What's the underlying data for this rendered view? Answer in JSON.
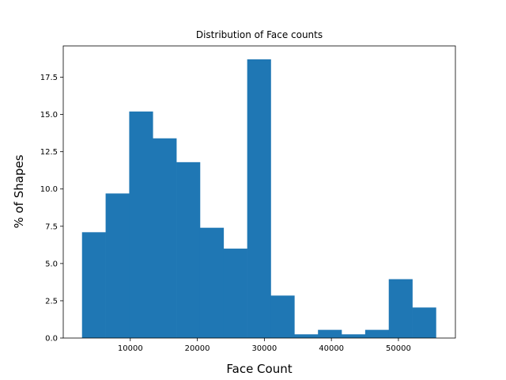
{
  "chart_data": {
    "type": "bar",
    "title": "Distribution of Face counts",
    "xlabel": "Face Count",
    "ylabel": "% of Shapes",
    "bin_edges": [
      2800,
      6320,
      9840,
      13360,
      16880,
      20400,
      23920,
      27440,
      30960,
      34480,
      38000,
      41520,
      45040,
      48560,
      52080,
      55600
    ],
    "values": [
      7.1,
      9.7,
      15.2,
      13.4,
      11.8,
      7.4,
      6.0,
      18.7,
      2.85,
      0.25,
      0.55,
      0.25,
      0.55,
      3.95,
      2.05
    ],
    "xlim": [
      0,
      58500
    ],
    "ylim": [
      0,
      19.6
    ],
    "xticks": [
      10000,
      20000,
      30000,
      40000,
      50000
    ],
    "xtick_labels": [
      "10000",
      "20000",
      "30000",
      "40000",
      "50000"
    ],
    "yticks": [
      0,
      2.5,
      5,
      7.5,
      10,
      12.5,
      15,
      17.5
    ],
    "ytick_labels": [
      "0.0",
      "2.5",
      "5.0",
      "7.5",
      "10.0",
      "12.5",
      "15.0",
      "17.5"
    ],
    "bar_color": "#1f77b4",
    "grid": false,
    "legend": "none"
  }
}
